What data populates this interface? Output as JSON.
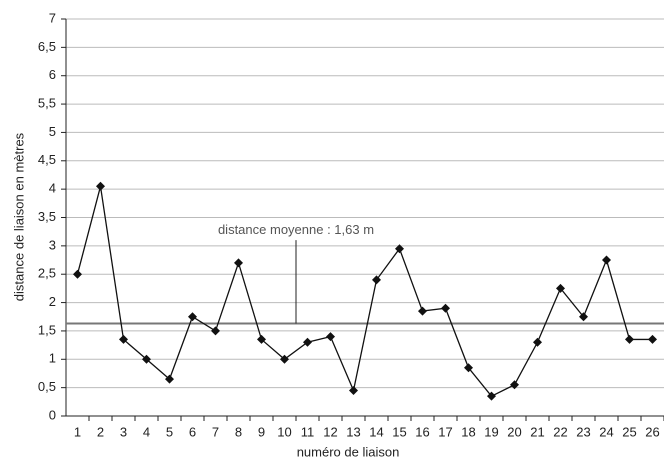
{
  "chart_data": {
    "type": "line",
    "x_label": "numéro de liaison",
    "y_label": "distance de liaison en mètres",
    "categories": [
      "1",
      "2",
      "3",
      "4",
      "5",
      "6",
      "7",
      "8",
      "9",
      "10",
      "11",
      "12",
      "13",
      "14",
      "15",
      "16",
      "17",
      "18",
      "19",
      "20",
      "21",
      "22",
      "23",
      "24",
      "25",
      "26"
    ],
    "series": [
      {
        "name": "distance",
        "color": "#111111",
        "values": [
          2.5,
          4.05,
          1.35,
          1.0,
          0.65,
          1.75,
          1.5,
          2.7,
          1.35,
          1.0,
          1.3,
          1.4,
          0.45,
          2.4,
          2.95,
          1.85,
          1.9,
          0.85,
          0.35,
          0.55,
          1.3,
          2.25,
          1.75,
          2.75,
          1.35,
          1.35
        ]
      }
    ],
    "mean_line": {
      "value": 1.63,
      "label": "distance moyenne : 1,63 m",
      "color": "#777777"
    },
    "ylim": [
      0,
      7
    ],
    "yticks": [
      0,
      {
        "value": 0.5,
        "label": "0,5"
      },
      1,
      {
        "value": 1.5,
        "label": "1,5"
      },
      2,
      {
        "value": 2.5,
        "label": "2,5"
      },
      3,
      {
        "value": 3.5,
        "label": "3,5"
      },
      4,
      {
        "value": 4.5,
        "label": "4,5"
      },
      5,
      {
        "value": 5.5,
        "label": "5,5"
      },
      6,
      {
        "value": 6.5,
        "label": "6,5"
      },
      7
    ],
    "grid": true
  }
}
